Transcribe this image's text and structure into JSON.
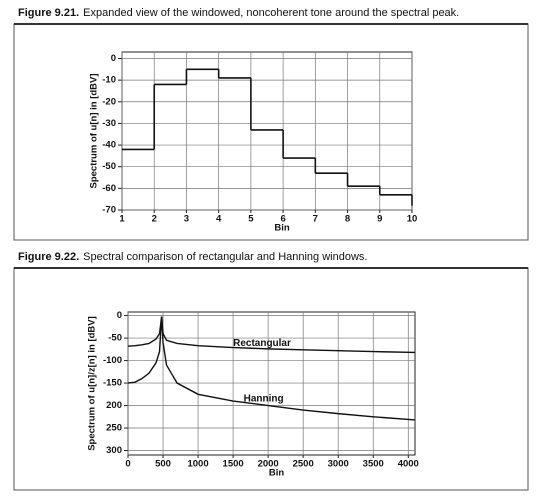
{
  "chart_data": [
    {
      "type": "step",
      "figure_label": "Figure 9.21.",
      "title": "Expanded view of the windowed, noncoherent tone around the spectral peak.",
      "xlabel": "Bin",
      "ylabel": "Spectrum of u[n] in [dBV]",
      "x": [
        1,
        2,
        3,
        4,
        5,
        6,
        7,
        8,
        9,
        10
      ],
      "values": [
        -42,
        -12,
        -5,
        -9,
        -33,
        -46,
        -53,
        -59,
        -63,
        -68
      ],
      "color": "#111111",
      "xlim": [
        1,
        10
      ],
      "xticks": [
        1,
        2,
        3,
        4,
        5,
        6,
        7,
        8,
        9,
        10
      ],
      "ylim": [
        -70,
        3
      ],
      "yticks": [
        0,
        -10,
        -20,
        -30,
        -40,
        -50,
        -60,
        -70
      ],
      "grid": true
    },
    {
      "type": "line",
      "figure_label": "Figure 9.22.",
      "title": "Spectral comparison of rectangular and Hanning windows.",
      "xlabel": "Bin",
      "ylabel": "Spectrum of u[n]/z[n] in [dBV]",
      "x": [
        0,
        100,
        200,
        300,
        400,
        450,
        480,
        500,
        550,
        700,
        1000,
        1500,
        2000,
        2500,
        3000,
        3500,
        4096
      ],
      "series": [
        {
          "name": "Rectangular",
          "color": "#111111",
          "values": [
            -68,
            -67,
            -65,
            -62,
            -52,
            -40,
            -2,
            -40,
            -55,
            -62,
            -67,
            -71,
            -74,
            -76,
            -78,
            -80,
            -82
          ]
        },
        {
          "name": "Hanning",
          "color": "#111111",
          "values": [
            -150,
            -148,
            -140,
            -128,
            -105,
            -80,
            -2,
            -60,
            -110,
            -150,
            -175,
            -190,
            -200,
            -210,
            -218,
            -225,
            -232
          ]
        }
      ],
      "xlim": [
        0,
        4096
      ],
      "xticks": [
        0,
        500,
        1000,
        1500,
        2000,
        2500,
        3000,
        3500,
        4000
      ],
      "ylim": [
        -310,
        8
      ],
      "yticks": [
        0,
        -50,
        -100,
        -150,
        {
          "value": -200,
          "label": "200"
        },
        {
          "value": -250,
          "label": "250"
        },
        {
          "value": -300,
          "label": "300"
        }
      ],
      "grid": true
    }
  ]
}
